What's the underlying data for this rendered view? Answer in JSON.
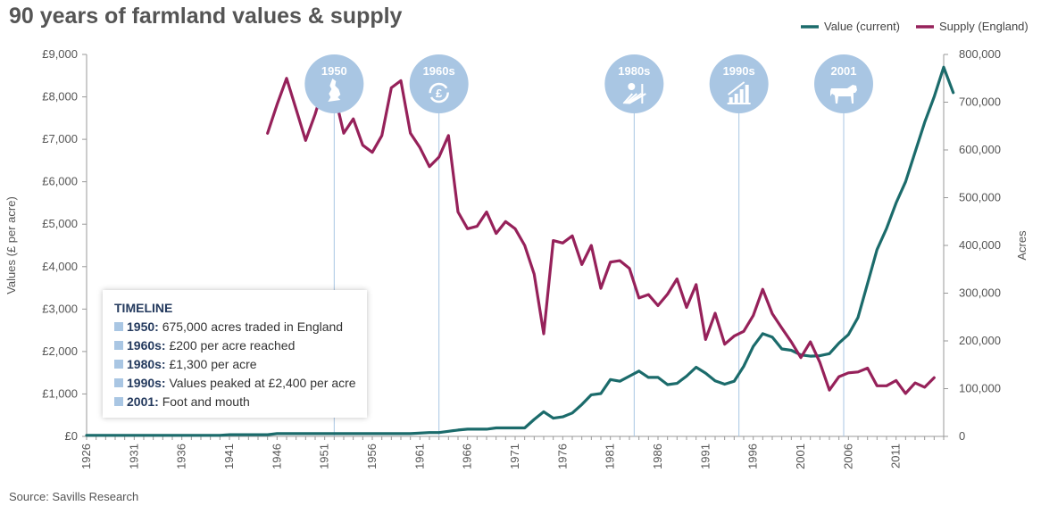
{
  "title": "90 years of farmland values & supply",
  "source": "Source: Savills Research",
  "colors": {
    "value": "#1b6b6b",
    "supply": "#96215a",
    "marker": "#a9c6e3",
    "grid": "#a9c6e3"
  },
  "timeline": {
    "title": "TIMELINE",
    "items": [
      {
        "year": "1950:",
        "text": "675,000 acres traded in England"
      },
      {
        "year": "1960s:",
        "text": "£200 per acre reached"
      },
      {
        "year": "1980s:",
        "text": "£1,300 per acre"
      },
      {
        "year": "1990s:",
        "text": "Values peaked at £2,400 per acre"
      },
      {
        "year": "2001:",
        "text": "Foot and mouth"
      }
    ]
  },
  "chart_data": {
    "type": "line",
    "title": "90 years of farmland values & supply",
    "ylabel": "Values (£ per acre)",
    "y2label": "Acres",
    "ylim": [
      0,
      9000
    ],
    "y2lim": [
      0,
      800000
    ],
    "xlim": [
      1926,
      2016
    ],
    "y_ticks": [
      "£0",
      "£1,000",
      "£2,000",
      "£3,000",
      "£4,000",
      "£5,000",
      "£6,000",
      "£7,000",
      "£8,000",
      "£9,000"
    ],
    "y2_ticks": [
      "0",
      "100,000",
      "200,000",
      "300,000",
      "400,000",
      "500,000",
      "600,000",
      "700,000",
      "800,000"
    ],
    "x_ticks": [
      "1926",
      "1931",
      "1936",
      "1941",
      "1946",
      "1951",
      "1956",
      "1961",
      "1966",
      "1971",
      "1976",
      "1981",
      "1986",
      "1991",
      "1996",
      "2001",
      "2006",
      "2011"
    ],
    "legend_position": "top-right",
    "series": [
      {
        "name": "Value (current)",
        "axis": "left",
        "x": [
          1926,
          1930,
          1935,
          1940,
          1941,
          1945,
          1946,
          1950,
          1955,
          1960,
          1962,
          1963,
          1964,
          1965,
          1966,
          1967,
          1968,
          1969,
          1970,
          1971,
          1972,
          1973,
          1974,
          1975,
          1976,
          1977,
          1978,
          1979,
          1980,
          1981,
          1982,
          1983,
          1984,
          1985,
          1986,
          1987,
          1988,
          1989,
          1990,
          1991,
          1992,
          1993,
          1994,
          1995,
          1996,
          1997,
          1998,
          1999,
          2000,
          2001,
          2002,
          2003,
          2004,
          2005,
          2006,
          2007,
          2008,
          2009,
          2010,
          2011,
          2012,
          2013,
          2014,
          2015,
          2016,
          2017
        ],
        "y": [
          25,
          25,
          25,
          25,
          40,
          40,
          65,
          65,
          65,
          65,
          90,
          90,
          120,
          150,
          170,
          170,
          170,
          200,
          200,
          200,
          200,
          400,
          580,
          430,
          460,
          550,
          750,
          980,
          1010,
          1340,
          1300,
          1420,
          1540,
          1390,
          1390,
          1220,
          1250,
          1420,
          1630,
          1490,
          1310,
          1230,
          1300,
          1650,
          2120,
          2420,
          2340,
          2060,
          2030,
          1920,
          1890,
          1900,
          1950,
          2200,
          2400,
          2800,
          3600,
          4400,
          4900,
          5500,
          6000,
          6700,
          7400,
          8000,
          8700,
          8100
        ]
      },
      {
        "name": "Supply (England)",
        "axis": "right",
        "x": [
          1945,
          1946,
          1947,
          1948,
          1949,
          1950,
          1951,
          1952,
          1953,
          1954,
          1955,
          1956,
          1957,
          1958,
          1959,
          1960,
          1961,
          1962,
          1963,
          1964,
          1965,
          1966,
          1967,
          1968,
          1969,
          1970,
          1971,
          1972,
          1973,
          1974,
          1975,
          1976,
          1977,
          1978,
          1979,
          1980,
          1981,
          1982,
          1983,
          1984,
          1985,
          1986,
          1987,
          1988,
          1989,
          1990,
          1991,
          1992,
          1993,
          1994,
          1995,
          1996,
          1997,
          1998,
          1999,
          2000,
          2001,
          2002,
          2003,
          2004,
          2005,
          2006,
          2007,
          2008,
          2009,
          2010,
          2011,
          2012,
          2013,
          2014,
          2015
        ],
        "y": [
          635000,
          695000,
          750000,
          685000,
          620000,
          675000,
          740000,
          720000,
          635000,
          665000,
          610000,
          595000,
          630000,
          730000,
          745000,
          635000,
          605000,
          565000,
          585000,
          630000,
          470000,
          435000,
          440000,
          470000,
          425000,
          450000,
          435000,
          400000,
          340000,
          215000,
          410000,
          405000,
          420000,
          360000,
          400000,
          310000,
          365000,
          368000,
          352000,
          290000,
          297000,
          274000,
          298000,
          330000,
          270000,
          318000,
          203000,
          258000,
          193000,
          210000,
          220000,
          253000,
          308000,
          257000,
          227000,
          198000,
          165000,
          198000,
          155000,
          97000,
          125000,
          133000,
          135000,
          143000,
          106000,
          106000,
          117000,
          90000,
          112000,
          103000,
          123000
        ]
      }
    ],
    "markers": [
      {
        "label": "1950",
        "x": 1952,
        "icon": "england-map-icon"
      },
      {
        "label": "1960s",
        "x": 1963,
        "icon": "pound-cycle-icon"
      },
      {
        "label": "1980s",
        "x": 1983.5,
        "icon": "sun-field-icon"
      },
      {
        "label": "1990s",
        "x": 1994.5,
        "icon": "growth-chart-icon"
      },
      {
        "label": "2001",
        "x": 2005.5,
        "icon": "cow-icon"
      }
    ]
  }
}
